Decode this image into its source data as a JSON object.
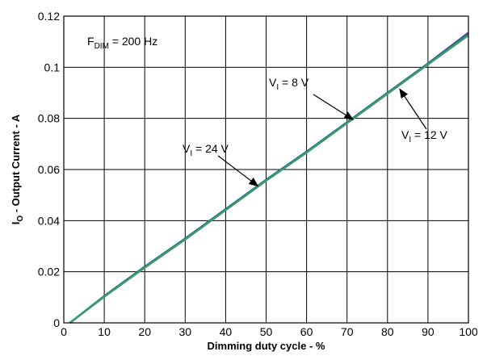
{
  "chart_data": {
    "type": "line",
    "xlabel": "Dimming duty cycle - %",
    "ylabel": {
      "main": "I",
      "sub": "O",
      "rest": " - Output Current - A"
    },
    "xlim": [
      0,
      100
    ],
    "ylim": [
      0,
      0.12
    ],
    "x_ticks": [
      0,
      10,
      20,
      30,
      40,
      50,
      60,
      70,
      80,
      90,
      100
    ],
    "y_ticks": [
      0,
      0.02,
      0.04,
      0.06,
      0.08,
      0.1,
      0.12
    ],
    "x_tick_labels": [
      "0",
      "10",
      "20",
      "30",
      "40",
      "50",
      "60",
      "70",
      "80",
      "90",
      "100"
    ],
    "y_tick_labels": [
      "0",
      "0.02",
      "0.04",
      "0.06",
      "0.08",
      "0.1",
      "0.12"
    ],
    "grid": true,
    "inset_label": {
      "main": "F",
      "sub": "DIM",
      "rest": " = 200 Hz"
    },
    "series": [
      {
        "name": "V_I = 8 V",
        "color": "#5b3a8c",
        "x": [
          1.5,
          10,
          20,
          30,
          40,
          50,
          60,
          70,
          80,
          90,
          100
        ],
        "y": [
          0.0,
          0.0105,
          0.022,
          0.033,
          0.0445,
          0.056,
          0.067,
          0.0785,
          0.09,
          0.1015,
          0.1135
        ]
      },
      {
        "name": "V_I = 12 V",
        "color": "#2e6ea8",
        "x": [
          1.5,
          10,
          20,
          30,
          40,
          50,
          60,
          70,
          80,
          90,
          100
        ],
        "y": [
          0.0,
          0.0103,
          0.0218,
          0.0328,
          0.0443,
          0.0558,
          0.0668,
          0.0783,
          0.0898,
          0.1013,
          0.1128
        ]
      },
      {
        "name": "V_I = 24 V",
        "color": "#2ea36a",
        "x": [
          1.5,
          10,
          20,
          30,
          40,
          50,
          60,
          70,
          80,
          90,
          100
        ],
        "y": [
          0.0,
          0.0102,
          0.0216,
          0.0326,
          0.0441,
          0.0556,
          0.0666,
          0.0781,
          0.0896,
          0.1011,
          0.1125
        ]
      }
    ],
    "annotations": [
      {
        "id": "vi-8v",
        "main": "V",
        "sub": "I",
        "rest": " = 8 V",
        "target_x": 71.5,
        "target_y": 0.0795
      },
      {
        "id": "vi-12v",
        "main": "V",
        "sub": "I",
        "rest": " = 12 V",
        "target_x": 83,
        "target_y": 0.0915
      },
      {
        "id": "vi-24v",
        "main": "V",
        "sub": "I",
        "rest": " = 24 V",
        "target_x": 48,
        "target_y": 0.0535
      }
    ]
  }
}
